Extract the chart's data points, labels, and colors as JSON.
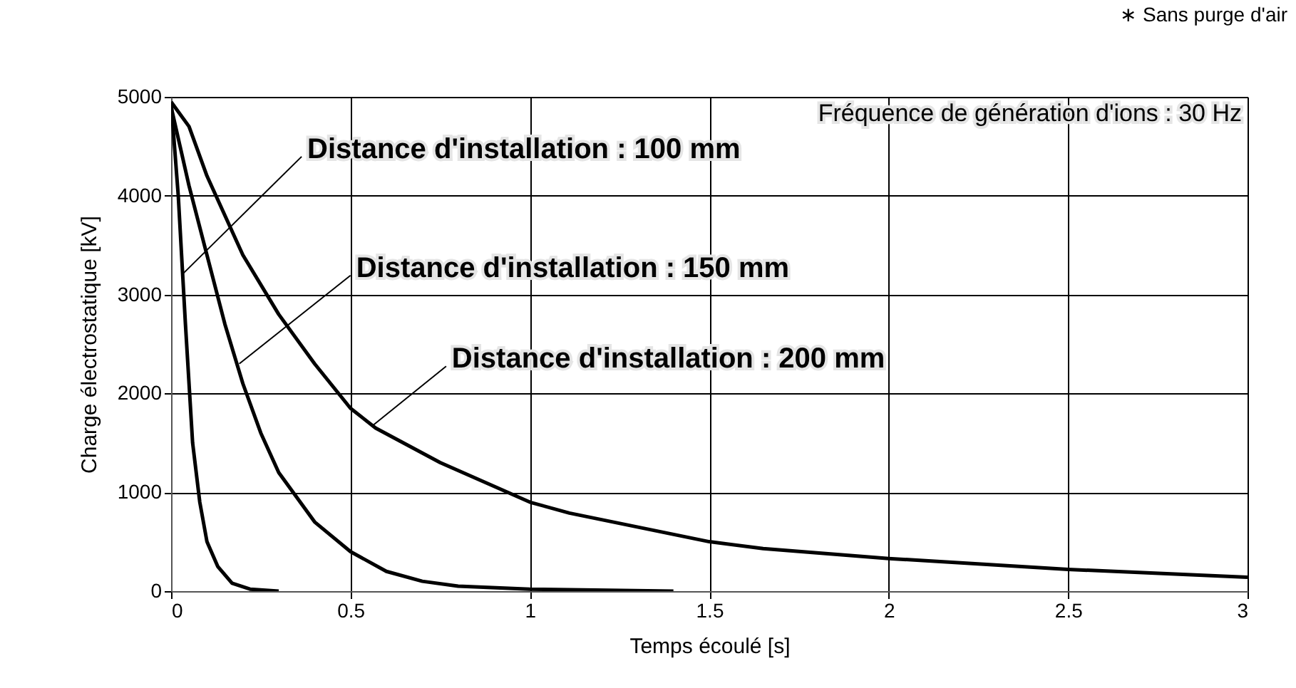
{
  "chart_data": {
    "type": "line",
    "xlabel": "Temps écoulé [s]",
    "ylabel": "Charge électrostatique [kV]",
    "xlim": [
      0,
      3
    ],
    "xticks": [
      0,
      0.5,
      1,
      1.5,
      2,
      2.5,
      3
    ],
    "ylim": [
      0,
      5000
    ],
    "yticks": [
      0,
      1000,
      2000,
      3000,
      4000,
      5000
    ],
    "grid": true,
    "legend": false,
    "marker": "none",
    "line_style": "solid",
    "series": [
      {
        "color": "#000000",
        "x": [
          0,
          0.02,
          0.04,
          0.06,
          0.08,
          0.1,
          0.13,
          0.17,
          0.22,
          0.3
        ],
        "values": [
          4950,
          4000,
          2700,
          1500,
          900,
          500,
          250,
          80,
          20,
          0
        ]
      },
      {
        "color": "#000000",
        "x": [
          0,
          0.05,
          0.1,
          0.15,
          0.2,
          0.25,
          0.3,
          0.4,
          0.5,
          0.6,
          0.7,
          0.8,
          1.0,
          1.4
        ],
        "values": [
          4900,
          4100,
          3400,
          2700,
          2100,
          1600,
          1200,
          700,
          400,
          200,
          100,
          50,
          20,
          0
        ]
      },
      {
        "color": "#000000",
        "x": [
          0,
          0.05,
          0.1,
          0.2,
          0.3,
          0.4,
          0.5,
          0.57,
          0.75,
          1.0,
          1.11,
          1.5,
          1.65,
          2.0,
          2.5,
          3.0
        ],
        "values": [
          4950,
          4700,
          4200,
          3400,
          2800,
          2300,
          1850,
          1650,
          1300,
          900,
          790,
          500,
          430,
          330,
          220,
          140
        ]
      }
    ],
    "annotations": [
      {
        "text": "Distance d'installation : 100 mm",
        "x": 0.03,
        "y": 3200
      },
      {
        "text": "Distance d'installation : 150 mm",
        "x": 0.19,
        "y": 2300
      },
      {
        "text": "Distance d'installation : 200 mm",
        "x": 0.56,
        "y": 1670
      },
      "Fréquence de génération d'ions : 30 Hz",
      "∗ Sans purge d'air"
    ]
  }
}
